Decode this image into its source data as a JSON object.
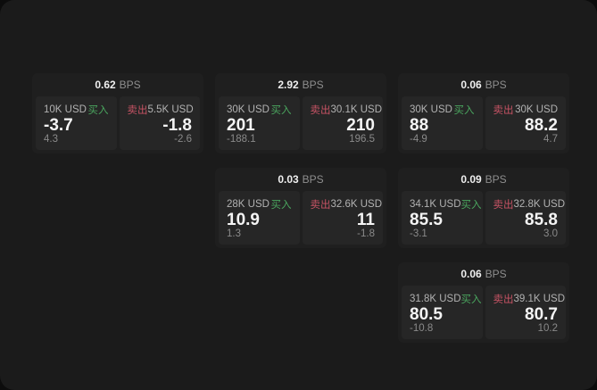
{
  "labels": {
    "bps": "BPS",
    "buy": "买入",
    "sell": "卖出"
  },
  "theme": {
    "screen_bg": "#1b1b1b",
    "card_bg": "#1f1f1f",
    "panel_bg": "#262626",
    "buy_green": "#4aa55e",
    "sell_red": "#c65364",
    "value_color": "#f4f4f4",
    "muted_color": "#8a8a8a"
  },
  "cards": [
    {
      "bps": "0.62",
      "col": 1,
      "row": 1,
      "buy": {
        "size": "10K USD",
        "value": "-3.7",
        "delta": "4.3"
      },
      "sell": {
        "size": "5.5K USD",
        "value": "-1.8",
        "delta": "-2.6"
      }
    },
    {
      "bps": "2.92",
      "col": 2,
      "row": 1,
      "buy": {
        "size": "30K USD",
        "value": "201",
        "delta": "-188.1"
      },
      "sell": {
        "size": "30.1K USD",
        "value": "210",
        "delta": "196.5"
      }
    },
    {
      "bps": "0.06",
      "col": 3,
      "row": 1,
      "buy": {
        "size": "30K USD",
        "value": "88",
        "delta": "-4.9"
      },
      "sell": {
        "size": "30K USD",
        "value": "88.2",
        "delta": "4.7"
      }
    },
    {
      "bps": "0.03",
      "col": 2,
      "row": 2,
      "buy": {
        "size": "28K USD",
        "value": "10.9",
        "delta": "1.3"
      },
      "sell": {
        "size": "32.6K USD",
        "value": "11",
        "delta": "-1.8"
      }
    },
    {
      "bps": "0.09",
      "col": 3,
      "row": 2,
      "buy": {
        "size": "34.1K USD",
        "value": "85.5",
        "delta": "-3.1"
      },
      "sell": {
        "size": "32.8K USD",
        "value": "85.8",
        "delta": "3.0"
      }
    },
    {
      "bps": "0.06",
      "col": 3,
      "row": 3,
      "buy": {
        "size": "31.8K USD",
        "value": "80.5",
        "delta": "-10.8"
      },
      "sell": {
        "size": "39.1K USD",
        "value": "80.7",
        "delta": "10.2"
      }
    }
  ]
}
